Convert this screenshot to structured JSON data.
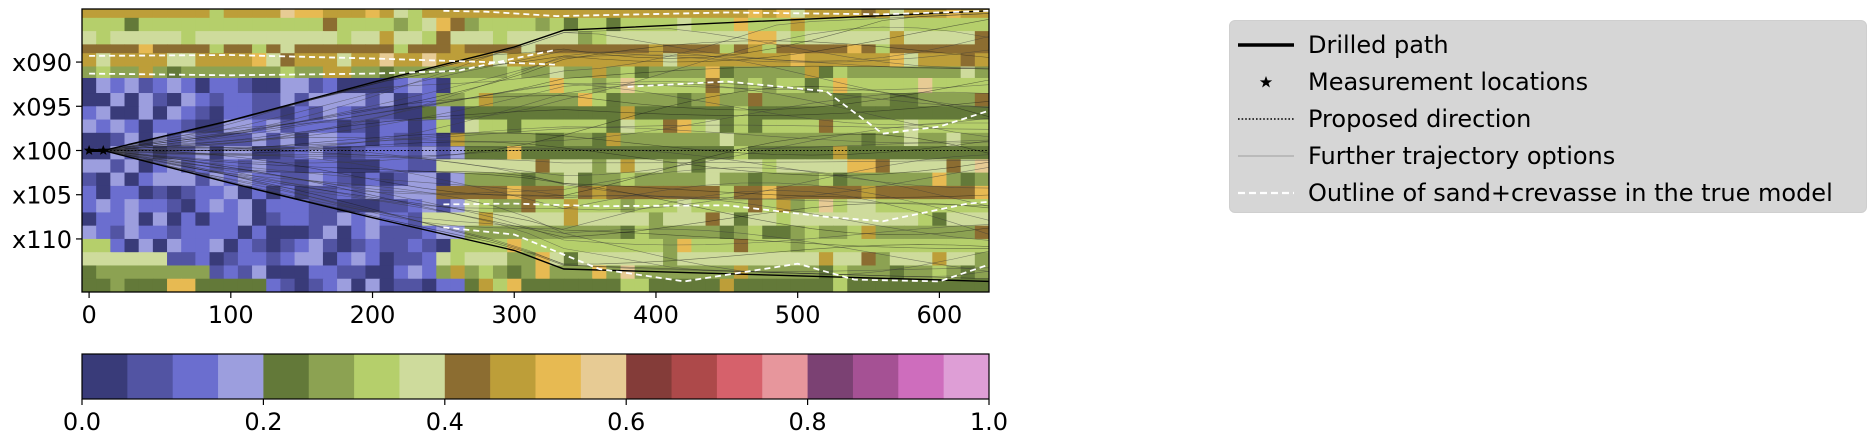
{
  "chart_data": [
    {
      "type": "heatmap",
      "title": "",
      "xlabel": "",
      "ylabel": "",
      "xlim": [
        -5,
        635
      ],
      "ylim": [
        116,
        84
      ],
      "x_ticks": [
        0,
        100,
        200,
        300,
        400,
        500,
        600
      ],
      "x_tick_labels": [
        "0",
        "100",
        "200",
        "300",
        "400",
        "500",
        "600"
      ],
      "y_ticks": [
        90,
        95,
        100,
        105,
        110
      ],
      "y_tick_labels": [
        "x090",
        "x095",
        "x100",
        "x105",
        "x110"
      ],
      "start_point": [
        0,
        100
      ],
      "drilled_path": {
        "x": [
          0,
          10
        ],
        "y": [
          100,
          100
        ]
      },
      "trajectory_fan": {
        "origin": [
          10,
          100
        ],
        "upper_envelope": {
          "x": [
            10,
            100,
            200,
            300,
            335,
            635
          ],
          "y": [
            100,
            96.6,
            92.3,
            88.3,
            86.4,
            84.2
          ]
        },
        "lower_envelope": {
          "x": [
            10,
            100,
            200,
            300,
            335,
            635
          ],
          "y": [
            100,
            103.7,
            107.6,
            111.3,
            113.4,
            114.8
          ]
        },
        "central_direction": {
          "x": [
            10,
            635
          ],
          "y": [
            100,
            100
          ]
        }
      },
      "true_model_outlines": [
        {
          "x": [
            0,
            100,
            200,
            300,
            330
          ],
          "y": [
            89.3,
            89.2,
            89.6,
            90.1,
            90.3
          ]
        },
        {
          "x": [
            0,
            100,
            200,
            260,
            300,
            330
          ],
          "y": [
            91.3,
            91.5,
            91.3,
            91.0,
            89.6,
            88.6
          ]
        },
        {
          "x": [
            250,
            300,
            360,
            450,
            520,
            560,
            620,
            635
          ],
          "y": [
            106.1,
            106.0,
            106.3,
            106.2,
            107.5,
            108.0,
            106.0,
            105.8
          ]
        },
        {
          "x": [
            250,
            300,
            360,
            420,
            500,
            540,
            600,
            635
          ],
          "y": [
            108.7,
            109.5,
            113.4,
            114.8,
            112.8,
            114.6,
            114.8,
            112.9
          ]
        },
        {
          "x": [
            380,
            450,
            520,
            560,
            600,
            635
          ],
          "y": [
            92.8,
            92.2,
            93.3,
            98.1,
            97.3,
            95.5
          ]
        },
        {
          "x": [
            250,
            280,
            330,
            450,
            560,
            635
          ],
          "y": [
            84.2,
            84.3,
            84.8,
            84.4,
            84.6,
            84.2
          ]
        }
      ],
      "facies_layers": [
        {
          "y_range": [
            84.0,
            85.0
          ],
          "value": 0.46
        },
        {
          "y_range": [
            85.0,
            86.5
          ],
          "value": 0.32
        },
        {
          "y_range": [
            86.5,
            88.0
          ],
          "value": 0.37
        },
        {
          "y_range": [
            88.0,
            89.0
          ],
          "value": 0.42
        },
        {
          "y_range": [
            89.0,
            90.5
          ],
          "value": 0.46
        },
        {
          "y_range": [
            90.5,
            91.8
          ],
          "value": 0.25
        },
        {
          "y_range": [
            91.8,
            93.5
          ],
          "value": 0.32
        },
        {
          "y_range": [
            93.5,
            95.0
          ],
          "value": 0.27
        },
        {
          "y_range": [
            95.0,
            96.5
          ],
          "value": 0.22
        },
        {
          "y_range": [
            96.5,
            98.0
          ],
          "value": 0.32
        },
        {
          "y_range": [
            98.0,
            99.5
          ],
          "value": 0.27
        },
        {
          "y_range": [
            99.5,
            101.0
          ],
          "value": 0.22
        },
        {
          "y_range": [
            101.0,
            102.5
          ],
          "value": 0.37
        },
        {
          "y_range": [
            102.5,
            104.0
          ],
          "value": 0.27
        },
        {
          "y_range": [
            104.0,
            105.5
          ],
          "value": 0.42
        },
        {
          "y_range": [
            105.5,
            107.0
          ],
          "value": 0.32
        },
        {
          "y_range": [
            107.0,
            108.5
          ],
          "value": 0.37
        },
        {
          "y_range": [
            108.5,
            110.0
          ],
          "value": 0.27
        },
        {
          "y_range": [
            110.0,
            111.5
          ],
          "value": 0.32
        },
        {
          "y_range": [
            111.5,
            113.0
          ],
          "value": 0.37
        },
        {
          "y_range": [
            113.0,
            114.5
          ],
          "value": 0.27
        },
        {
          "y_range": [
            114.5,
            116.0
          ],
          "value": 0.22
        }
      ],
      "shale_region": {
        "x_max": 230,
        "note_values": [
          0.02,
          0.07,
          0.12,
          0.17
        ]
      }
    },
    {
      "type": "colorbar",
      "range": [
        0.0,
        1.0
      ],
      "ticks": [
        0.0,
        0.2,
        0.4,
        0.6,
        0.8,
        1.0
      ],
      "tick_labels": [
        "0.0",
        "0.2",
        "0.4",
        "0.6",
        "0.8",
        "1.0"
      ],
      "colors": [
        "#393b79",
        "#5254a3",
        "#6b6ecf",
        "#9c9ede",
        "#637939",
        "#8ca252",
        "#b5cf6b",
        "#cedb9c",
        "#8c6d31",
        "#bd9e39",
        "#e7ba52",
        "#e7cb94",
        "#843c39",
        "#ad494a",
        "#d6616b",
        "#e7969c",
        "#7b4173",
        "#a55194",
        "#ce6dbd",
        "#de9ed6"
      ]
    }
  ],
  "legend": {
    "items": [
      {
        "label": "Drilled path",
        "style": "solid-thick",
        "color": "#000000"
      },
      {
        "label": "Measurement locations",
        "style": "star-marker",
        "color": "#000000"
      },
      {
        "label": "Proposed direction",
        "style": "dotted",
        "color": "#000000"
      },
      {
        "label": "Further trajectory options",
        "style": "solid-thin",
        "color": "#b0b0b0"
      },
      {
        "label": "Outline of sand+crevasse in the true model",
        "style": "dashed",
        "color": "#ffffff"
      }
    ]
  }
}
